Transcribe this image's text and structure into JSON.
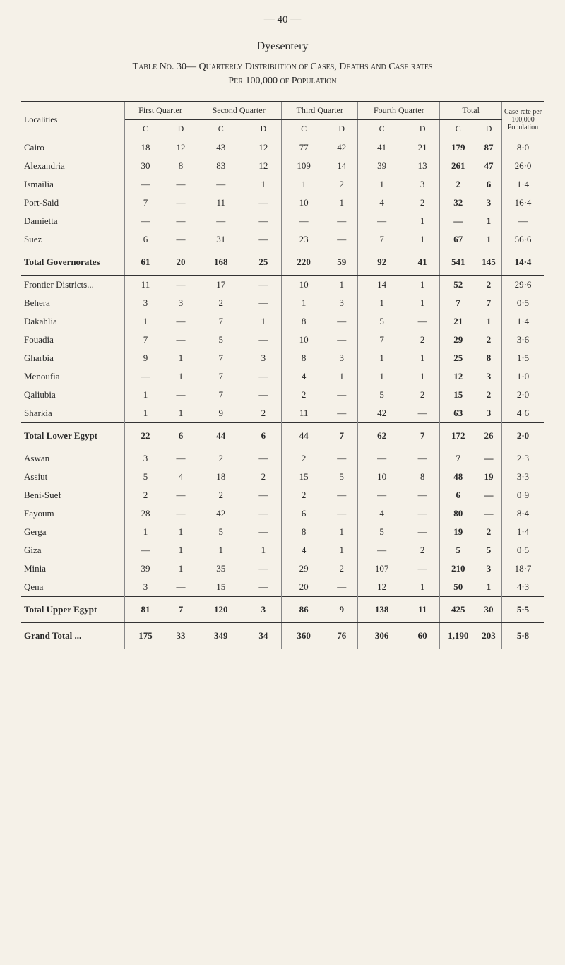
{
  "page_number": "— 40 —",
  "title": "Dyesentery",
  "table_caption": "Table No. 30— Quarterly Distribution of Cases, Deaths and Case rates",
  "subcaption": "Per 100,000 of Population",
  "headers": {
    "localities": "Localities",
    "q1": "First Quarter",
    "q2": "Second Quarter",
    "q3": "Third Quarter",
    "q4": "Fourth Quarter",
    "total": "Total",
    "case_rate": "Case-rate per 100,000 Population",
    "c": "C",
    "d": "D"
  },
  "sections": [
    {
      "rows": [
        {
          "loc": "Cairo",
          "q1c": "18",
          "q1d": "12",
          "q2c": "43",
          "q2d": "12",
          "q3c": "77",
          "q3d": "42",
          "q4c": "41",
          "q4d": "21",
          "tc": "179",
          "td": "87",
          "rate": "8·0"
        },
        {
          "loc": "Alexandria",
          "q1c": "30",
          "q1d": "8",
          "q2c": "83",
          "q2d": "12",
          "q3c": "109",
          "q3d": "14",
          "q4c": "39",
          "q4d": "13",
          "tc": "261",
          "td": "47",
          "rate": "26·0"
        },
        {
          "loc": "Ismailia",
          "q1c": "—",
          "q1d": "—",
          "q2c": "—",
          "q2d": "1",
          "q3c": "1",
          "q3d": "2",
          "q4c": "1",
          "q4d": "3",
          "tc": "2",
          "td": "6",
          "rate": "1·4"
        },
        {
          "loc": "Port-Said",
          "q1c": "7",
          "q1d": "—",
          "q2c": "11",
          "q2d": "—",
          "q3c": "10",
          "q3d": "1",
          "q4c": "4",
          "q4d": "2",
          "tc": "32",
          "td": "3",
          "rate": "16·4"
        },
        {
          "loc": "Damietta",
          "q1c": "—",
          "q1d": "—",
          "q2c": "—",
          "q2d": "—",
          "q3c": "—",
          "q3d": "—",
          "q4c": "—",
          "q4d": "1",
          "tc": "—",
          "td": "1",
          "rate": "—"
        },
        {
          "loc": "Suez",
          "q1c": "6",
          "q1d": "—",
          "q2c": "31",
          "q2d": "—",
          "q3c": "23",
          "q3d": "—",
          "q4c": "7",
          "q4d": "1",
          "tc": "67",
          "td": "1",
          "rate": "56·6"
        }
      ],
      "total": {
        "loc": "Total Governorates",
        "q1c": "61",
        "q1d": "20",
        "q2c": "168",
        "q2d": "25",
        "q3c": "220",
        "q3d": "59",
        "q4c": "92",
        "q4d": "41",
        "tc": "541",
        "td": "145",
        "rate": "14·4"
      }
    },
    {
      "rows": [
        {
          "loc": "Frontier Districts...",
          "q1c": "11",
          "q1d": "—",
          "q2c": "17",
          "q2d": "—",
          "q3c": "10",
          "q3d": "1",
          "q4c": "14",
          "q4d": "1",
          "tc": "52",
          "td": "2",
          "rate": "29·6"
        },
        {
          "loc": "Behera",
          "q1c": "3",
          "q1d": "3",
          "q2c": "2",
          "q2d": "—",
          "q3c": "1",
          "q3d": "3",
          "q4c": "1",
          "q4d": "1",
          "tc": "7",
          "td": "7",
          "rate": "0·5"
        },
        {
          "loc": "Dakahlia",
          "q1c": "1",
          "q1d": "—",
          "q2c": "7",
          "q2d": "1",
          "q3c": "8",
          "q3d": "—",
          "q4c": "5",
          "q4d": "—",
          "tc": "21",
          "td": "1",
          "rate": "1·4"
        },
        {
          "loc": "Fouadia",
          "q1c": "7",
          "q1d": "—",
          "q2c": "5",
          "q2d": "—",
          "q3c": "10",
          "q3d": "—",
          "q4c": "7",
          "q4d": "2",
          "tc": "29",
          "td": "2",
          "rate": "3·6"
        },
        {
          "loc": "Gharbia",
          "q1c": "9",
          "q1d": "1",
          "q2c": "7",
          "q2d": "3",
          "q3c": "8",
          "q3d": "3",
          "q4c": "1",
          "q4d": "1",
          "tc": "25",
          "td": "8",
          "rate": "1·5"
        },
        {
          "loc": "Menoufia",
          "q1c": "—",
          "q1d": "1",
          "q2c": "7",
          "q2d": "—",
          "q3c": "4",
          "q3d": "1",
          "q4c": "1",
          "q4d": "1",
          "tc": "12",
          "td": "3",
          "rate": "1·0"
        },
        {
          "loc": "Qaliubia",
          "q1c": "1",
          "q1d": "—",
          "q2c": "7",
          "q2d": "—",
          "q3c": "2",
          "q3d": "—",
          "q4c": "5",
          "q4d": "2",
          "tc": "15",
          "td": "2",
          "rate": "2·0"
        },
        {
          "loc": "Sharkia",
          "q1c": "1",
          "q1d": "1",
          "q2c": "9",
          "q2d": "2",
          "q3c": "11",
          "q3d": "—",
          "q4c": "42",
          "q4d": "—",
          "tc": "63",
          "td": "3",
          "rate": "4·6"
        }
      ],
      "total": {
        "loc": "Total Lower Egypt",
        "q1c": "22",
        "q1d": "6",
        "q2c": "44",
        "q2d": "6",
        "q3c": "44",
        "q3d": "7",
        "q4c": "62",
        "q4d": "7",
        "tc": "172",
        "td": "26",
        "rate": "2·0"
      }
    },
    {
      "rows": [
        {
          "loc": "Aswan",
          "q1c": "3",
          "q1d": "—",
          "q2c": "2",
          "q2d": "—",
          "q3c": "2",
          "q3d": "—",
          "q4c": "—",
          "q4d": "—",
          "tc": "7",
          "td": "—",
          "rate": "2·3"
        },
        {
          "loc": "Assiut",
          "q1c": "5",
          "q1d": "4",
          "q2c": "18",
          "q2d": "2",
          "q3c": "15",
          "q3d": "5",
          "q4c": "10",
          "q4d": "8",
          "tc": "48",
          "td": "19",
          "rate": "3·3"
        },
        {
          "loc": "Beni-Suef",
          "q1c": "2",
          "q1d": "—",
          "q2c": "2",
          "q2d": "—",
          "q3c": "2",
          "q3d": "—",
          "q4c": "—",
          "q4d": "—",
          "tc": "6",
          "td": "—",
          "rate": "0·9"
        },
        {
          "loc": "Fayoum",
          "q1c": "28",
          "q1d": "—",
          "q2c": "42",
          "q2d": "—",
          "q3c": "6",
          "q3d": "—",
          "q4c": "4",
          "q4d": "—",
          "tc": "80",
          "td": "—",
          "rate": "8·4"
        },
        {
          "loc": "Gerga",
          "q1c": "1",
          "q1d": "1",
          "q2c": "5",
          "q2d": "—",
          "q3c": "8",
          "q3d": "1",
          "q4c": "5",
          "q4d": "—",
          "tc": "19",
          "td": "2",
          "rate": "1·4"
        },
        {
          "loc": "Giza",
          "q1c": "—",
          "q1d": "1",
          "q2c": "1",
          "q2d": "1",
          "q3c": "4",
          "q3d": "1",
          "q4c": "—",
          "q4d": "2",
          "tc": "5",
          "td": "5",
          "rate": "0·5"
        },
        {
          "loc": "Minia",
          "q1c": "39",
          "q1d": "1",
          "q2c": "35",
          "q2d": "—",
          "q3c": "29",
          "q3d": "2",
          "q4c": "107",
          "q4d": "—",
          "tc": "210",
          "td": "3",
          "rate": "18·7"
        },
        {
          "loc": "Qena",
          "q1c": "3",
          "q1d": "—",
          "q2c": "15",
          "q2d": "—",
          "q3c": "20",
          "q3d": "—",
          "q4c": "12",
          "q4d": "1",
          "tc": "50",
          "td": "1",
          "rate": "4·3"
        }
      ],
      "total": {
        "loc": "Total Upper Egypt",
        "q1c": "81",
        "q1d": "7",
        "q2c": "120",
        "q2d": "3",
        "q3c": "86",
        "q3d": "9",
        "q4c": "138",
        "q4d": "11",
        "tc": "425",
        "td": "30",
        "rate": "5·5"
      }
    }
  ],
  "grand_total": {
    "loc": "Grand Total ...",
    "q1c": "175",
    "q1d": "33",
    "q2c": "349",
    "q2d": "34",
    "q3c": "360",
    "q3d": "76",
    "q4c": "306",
    "q4d": "60",
    "tc": "1,190",
    "td": "203",
    "rate": "5·8"
  }
}
